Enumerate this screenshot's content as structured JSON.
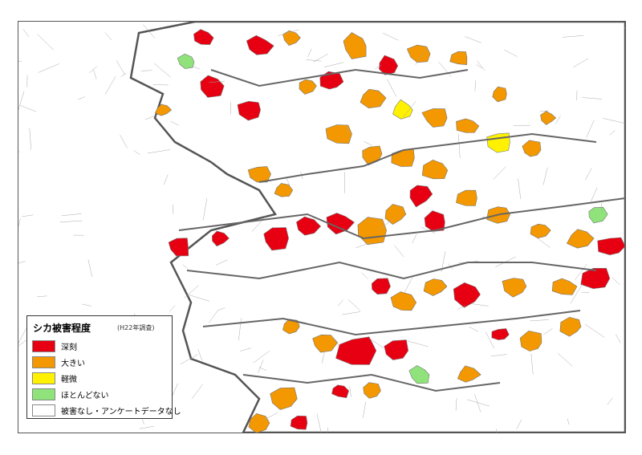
{
  "legend": {
    "title": "シカ被害程度",
    "note": "(H22年調査)",
    "items": [
      {
        "label": "深刻",
        "color": "#e60012"
      },
      {
        "label": "大きい",
        "color": "#f39800"
      },
      {
        "label": "軽微",
        "color": "#fff100"
      },
      {
        "label": "ほとんどない",
        "color": "#8fe37a"
      },
      {
        "label": "被害なし・アンケートデータなし",
        "color": "#ffffff"
      }
    ]
  },
  "palette": {
    "severe": "#e60012",
    "large": "#f39800",
    "minor": "#fff100",
    "almost_none": "#8fe37a",
    "none": "#ffffff",
    "boundary": "#666666"
  }
}
